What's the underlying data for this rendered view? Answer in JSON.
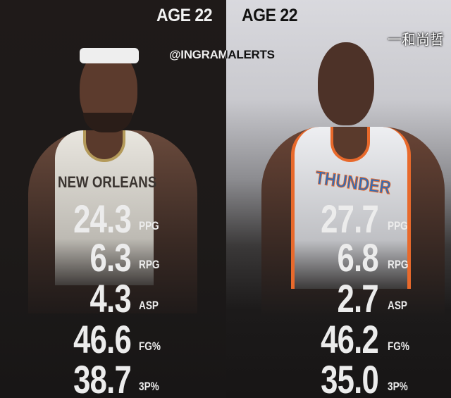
{
  "header": {
    "left_title": "AGE 22",
    "right_title": "AGE 22",
    "handle": "@INGRAMALERTS"
  },
  "left_player": {
    "jersey_text": "NEW ORLEANS",
    "jersey_color": "#f0ede6",
    "trim_color": "#b49a5a",
    "stats": [
      {
        "value": "24.3",
        "label": "PPG"
      },
      {
        "value": "6.3",
        "label": "RPG"
      },
      {
        "value": "4.3",
        "label": "ASP"
      },
      {
        "value": "46.6",
        "label": "FG%"
      },
      {
        "value": "38.7",
        "label": "3P%"
      }
    ]
  },
  "right_player": {
    "jersey_text": "THUNDER",
    "jersey_color": "#ecedf0",
    "trim_color": "#e8692b",
    "stats": [
      {
        "value": "27.7",
        "label": "PPG"
      },
      {
        "value": "6.8",
        "label": "RPG"
      },
      {
        "value": "2.7",
        "label": "ASP"
      },
      {
        "value": "46.2",
        "label": "FG%"
      },
      {
        "value": "35.0",
        "label": "3P%"
      }
    ]
  },
  "watermark": "一和尚哲"
}
